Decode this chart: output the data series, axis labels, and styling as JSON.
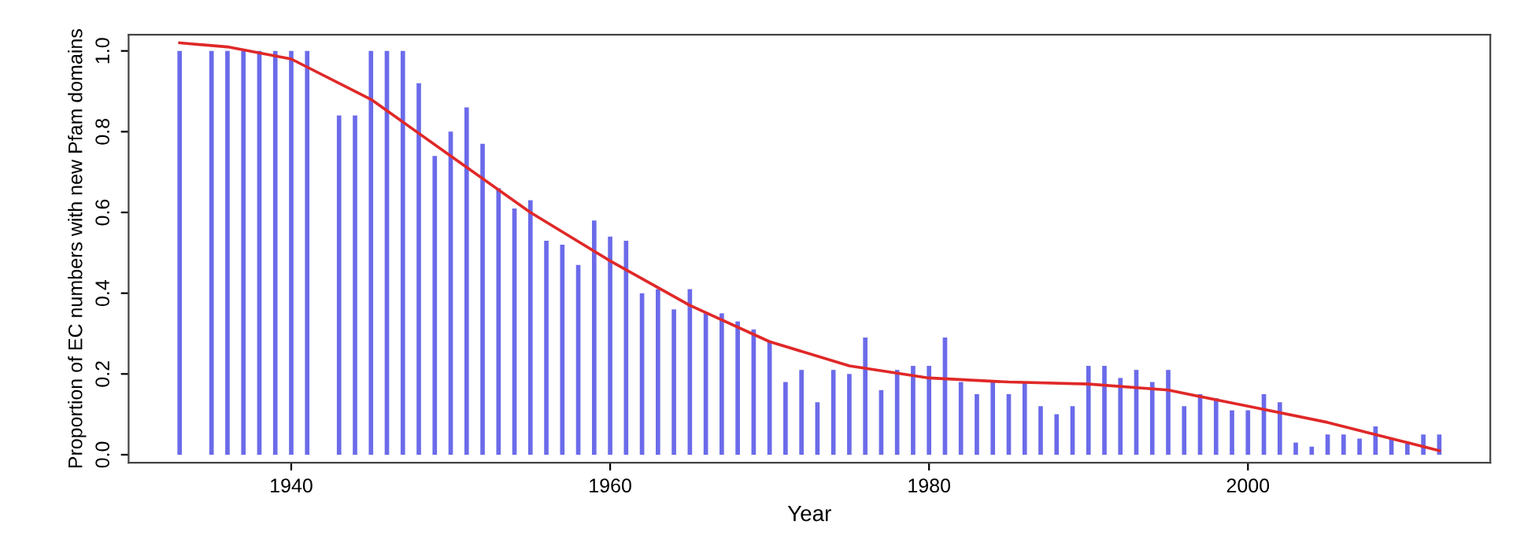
{
  "chart_data": {
    "type": "bar",
    "xlabel": "Year",
    "ylabel": "Proportion of EC numbers with new Pfam domains",
    "xlim": [
      1929.8,
      2015.2
    ],
    "ylim": [
      -0.02,
      1.04
    ],
    "xticks": [
      1940,
      1960,
      1980,
      2000
    ],
    "yticks": [
      {
        "value": 0,
        "label": "0.0"
      },
      {
        "value": 0.2,
        "label": "0.2"
      },
      {
        "value": 0.4,
        "label": "0.4"
      },
      {
        "value": 0.6,
        "label": "0.6"
      },
      {
        "value": 0.8,
        "label": "0.8"
      },
      {
        "value": 1,
        "label": "1.0"
      }
    ],
    "grid": false,
    "legend": false,
    "series": [
      {
        "color": "#6b6bea",
        "x": [
          1933,
          1935,
          1936,
          1937,
          1938,
          1939,
          1940,
          1941,
          1943,
          1944,
          1945,
          1946,
          1947,
          1948,
          1949,
          1950,
          1951,
          1952,
          1953,
          1954,
          1955,
          1956,
          1957,
          1958,
          1959,
          1960,
          1961,
          1962,
          1963,
          1964,
          1965,
          1966,
          1967,
          1968,
          1969,
          1970,
          1971,
          1972,
          1973,
          1974,
          1975,
          1976,
          1977,
          1978,
          1979,
          1980,
          1981,
          1982,
          1983,
          1984,
          1985,
          1986,
          1987,
          1988,
          1989,
          1990,
          1991,
          1992,
          1993,
          1994,
          1995,
          1996,
          1997,
          1998,
          1999,
          2000,
          2001,
          2002,
          2003,
          2004,
          2005,
          2006,
          2007,
          2008,
          2009,
          2010,
          2011,
          2012
        ],
        "values": [
          1.0,
          1.0,
          1.0,
          1.0,
          1.0,
          1.0,
          1.0,
          1.0,
          0.84,
          0.84,
          1.0,
          1.0,
          1.0,
          0.92,
          0.74,
          0.8,
          0.86,
          0.77,
          0.66,
          0.61,
          0.63,
          0.53,
          0.52,
          0.47,
          0.58,
          0.54,
          0.53,
          0.4,
          0.41,
          0.36,
          0.41,
          0.35,
          0.35,
          0.33,
          0.31,
          0.28,
          0.18,
          0.21,
          0.13,
          0.21,
          0.2,
          0.29,
          0.16,
          0.21,
          0.22,
          0.22,
          0.29,
          0.18,
          0.15,
          0.18,
          0.15,
          0.18,
          0.12,
          0.1,
          0.12,
          0.22,
          0.22,
          0.19,
          0.21,
          0.18,
          0.21,
          0.12,
          0.15,
          0.14,
          0.11,
          0.11,
          0.15,
          0.13,
          0.03,
          0.02,
          0.05,
          0.05,
          0.04,
          0.07,
          0.04,
          0.03,
          0.05,
          0.05
        ]
      },
      {
        "type": "line",
        "color": "#e02828",
        "x": [
          1933,
          1936,
          1940,
          1945,
          1950,
          1955,
          1960,
          1965,
          1970,
          1975,
          1980,
          1985,
          1990,
          1995,
          2000,
          2005,
          2010,
          2012
        ],
        "values": [
          1.02,
          1.01,
          0.98,
          0.88,
          0.74,
          0.6,
          0.48,
          0.37,
          0.28,
          0.22,
          0.19,
          0.18,
          0.175,
          0.16,
          0.12,
          0.08,
          0.03,
          0.01
        ]
      }
    ]
  }
}
